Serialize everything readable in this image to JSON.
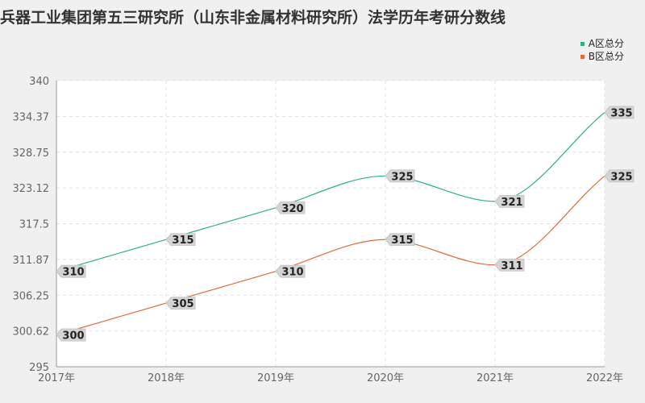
{
  "chart_data": {
    "type": "line",
    "title": "兵器工业集团第五三研究所（山东非金属材料研究所）法学历年考研分数线",
    "categories": [
      "2017年",
      "2018年",
      "2019年",
      "2020年",
      "2021年",
      "2022年"
    ],
    "series": [
      {
        "name": "A区总分",
        "color": "#2fb08a",
        "values": [
          310,
          315,
          320,
          325,
          321,
          335
        ]
      },
      {
        "name": "B区总分",
        "color": "#dd6b3d",
        "values": [
          300,
          305,
          310,
          315,
          311,
          325
        ]
      }
    ],
    "yticks": [
      "295",
      "300.62",
      "306.25",
      "311.87",
      "317.5",
      "323.12",
      "328.75",
      "334.37",
      "340"
    ],
    "ylim": [
      295,
      340
    ],
    "xlabel": "",
    "ylabel": "",
    "grid": true,
    "legend_position": "top-right",
    "smooth": true
  }
}
